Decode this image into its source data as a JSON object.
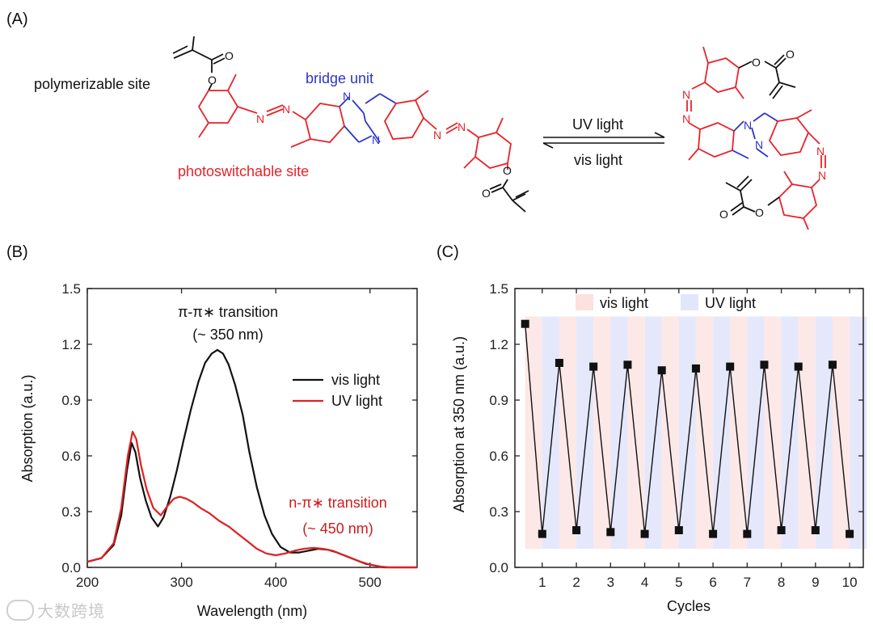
{
  "panels": {
    "a": "(A)",
    "b": "(B)",
    "c": "(C)"
  },
  "scheme": {
    "label_polymerizable": "polymerizable site",
    "label_bridge": "bridge unit",
    "label_photoswitch": "photoswitchable site",
    "arrow_forward": "UV light",
    "arrow_backward": "vis light",
    "atom_N": "N",
    "atom_O": "O",
    "colors": {
      "photoswitch": "#e8222a",
      "bridge": "#2b35c8",
      "base": "#111111"
    }
  },
  "watermark": "大数跨境",
  "chart_data": [
    {
      "id": "B",
      "type": "line",
      "xlabel": "Wavelength (nm)",
      "ylabel": "Absorption (a.u.)",
      "xlim": [
        200,
        550
      ],
      "ylim": [
        0,
        1.5
      ],
      "xticks": [
        200,
        300,
        400,
        500
      ],
      "yticks": [
        "0.0",
        "0.3",
        "0.6",
        "0.9",
        "1.2",
        "1.5"
      ],
      "annotations": [
        {
          "line1": "π-π∗ transition",
          "line2": "(~ 350 nm)",
          "color": "#111111"
        },
        {
          "line1": "n-π∗ transition",
          "line2": "(~ 450 nm)",
          "color": "#d01c1c"
        }
      ],
      "series": [
        {
          "name": "vis light",
          "color": "#111111",
          "x": [
            200,
            215,
            228,
            236,
            242,
            247,
            251,
            256,
            262,
            268,
            275,
            281,
            288,
            295,
            302,
            310,
            318,
            325,
            332,
            338,
            344,
            350,
            357,
            365,
            372,
            380,
            388,
            396,
            405,
            415,
            425,
            435,
            445,
            455,
            465,
            475,
            485,
            495,
            505,
            515,
            525,
            535,
            545,
            550
          ],
          "y": [
            0.03,
            0.05,
            0.12,
            0.28,
            0.52,
            0.67,
            0.62,
            0.48,
            0.36,
            0.27,
            0.22,
            0.27,
            0.38,
            0.52,
            0.68,
            0.85,
            1.0,
            1.1,
            1.15,
            1.17,
            1.15,
            1.09,
            0.98,
            0.82,
            0.62,
            0.43,
            0.28,
            0.18,
            0.11,
            0.08,
            0.08,
            0.09,
            0.1,
            0.095,
            0.08,
            0.06,
            0.04,
            0.02,
            0.01,
            0.0,
            0.0,
            0.0,
            0.0,
            0.0
          ]
        },
        {
          "name": "UV light",
          "color": "#e02020",
          "x": [
            200,
            215,
            228,
            236,
            243,
            248,
            252,
            257,
            263,
            270,
            278,
            285,
            292,
            298,
            305,
            312,
            320,
            330,
            340,
            350,
            360,
            370,
            380,
            390,
            400,
            410,
            420,
            430,
            440,
            450,
            460,
            470,
            480,
            490,
            500,
            510,
            520,
            530,
            540,
            550
          ],
          "y": [
            0.03,
            0.05,
            0.13,
            0.32,
            0.6,
            0.73,
            0.69,
            0.55,
            0.42,
            0.32,
            0.28,
            0.33,
            0.37,
            0.38,
            0.37,
            0.35,
            0.32,
            0.29,
            0.25,
            0.22,
            0.18,
            0.14,
            0.1,
            0.075,
            0.065,
            0.075,
            0.09,
            0.1,
            0.105,
            0.1,
            0.09,
            0.07,
            0.05,
            0.03,
            0.015,
            0.005,
            0.0,
            0.0,
            0.0,
            0.0
          ]
        }
      ]
    },
    {
      "id": "C",
      "type": "line",
      "xlabel": "Cycles",
      "ylabel": "Absorption at 350 nm (a.u.)",
      "xlim": [
        0.2,
        10.4
      ],
      "ylim": [
        0,
        1.5
      ],
      "xticks": [
        1,
        2,
        3,
        4,
        5,
        6,
        7,
        8,
        9,
        10
      ],
      "yticks": [
        "0.0",
        "0.3",
        "0.6",
        "0.9",
        "1.2",
        "1.5"
      ],
      "bands": {
        "from": 0.5,
        "to": 10.5,
        "y_range": [
          0.1,
          1.35
        ],
        "vis_color": "#fde8e8",
        "uv_color": "#e5e8fb"
      },
      "legend": [
        {
          "label": "vis light",
          "color": "#fde0e0"
        },
        {
          "label": "UV light",
          "color": "#e2e6fb"
        }
      ],
      "series": [
        {
          "name": "Absorption",
          "color": "#111111",
          "x": [
            0.5,
            1,
            1.5,
            2,
            2.5,
            3,
            3.5,
            4,
            4.5,
            5,
            5.5,
            6,
            6.5,
            7,
            7.5,
            8,
            8.5,
            9,
            9.5,
            10
          ],
          "y": [
            1.31,
            0.18,
            1.1,
            0.2,
            1.08,
            0.19,
            1.09,
            0.18,
            1.06,
            0.2,
            1.07,
            0.18,
            1.08,
            0.18,
            1.09,
            0.2,
            1.08,
            0.2,
            1.09,
            0.18
          ]
        }
      ]
    }
  ]
}
